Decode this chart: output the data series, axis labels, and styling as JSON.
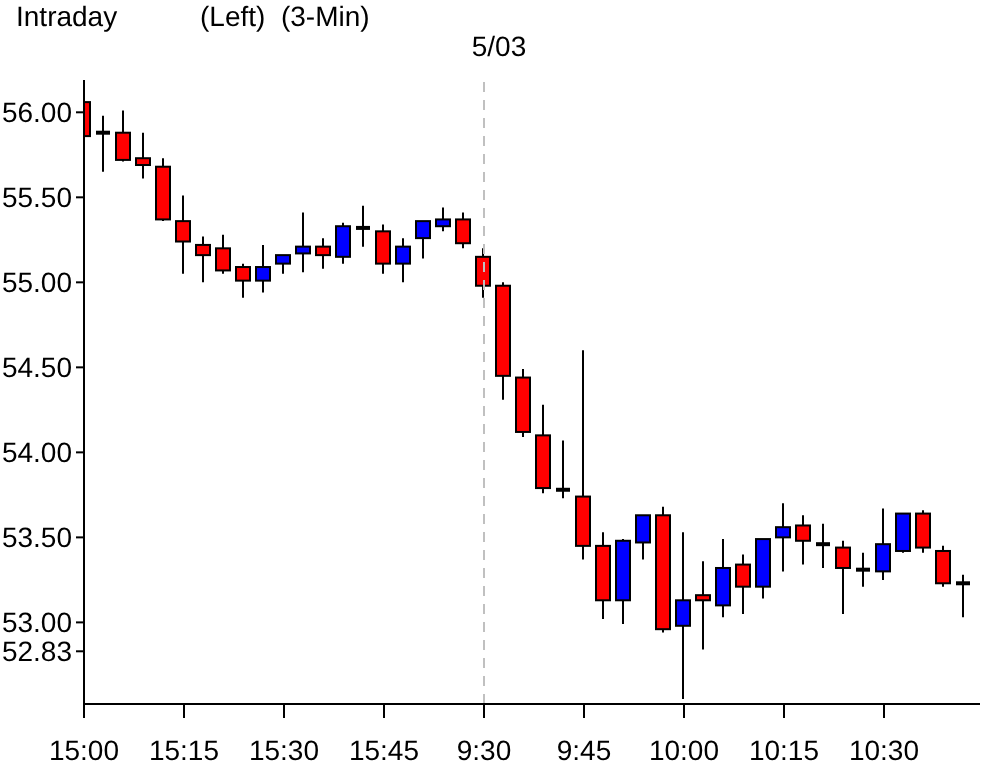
{
  "chart_data": {
    "type": "candlestick",
    "title": "(Left)  (3-Min)",
    "subtitle": "5/03",
    "annotations": [
      "Intraday"
    ],
    "categories": [
      "15:00",
      null,
      null,
      null,
      null,
      "15:15",
      null,
      null,
      null,
      null,
      "15:30",
      null,
      null,
      null,
      null,
      "15:45",
      null,
      null,
      null,
      null,
      "9:30",
      null,
      null,
      null,
      null,
      "9:45",
      null,
      null,
      null,
      null,
      "10:00",
      null,
      null,
      null,
      null,
      "10:15",
      null,
      null,
      null,
      null,
      "10:30",
      null,
      null,
      null,
      null
    ],
    "ohlc": [
      [
        56.06,
        56.12,
        55.75,
        55.86
      ],
      [
        55.88,
        55.98,
        55.65,
        55.88
      ],
      [
        55.88,
        56.01,
        55.71,
        55.72
      ],
      [
        55.73,
        55.88,
        55.61,
        55.69
      ],
      [
        55.68,
        55.73,
        55.36,
        55.37
      ],
      [
        55.36,
        55.51,
        55.05,
        55.24
      ],
      [
        55.22,
        55.27,
        55.0,
        55.16
      ],
      [
        55.2,
        55.28,
        55.05,
        55.07
      ],
      [
        55.09,
        55.11,
        54.91,
        55.01
      ],
      [
        55.01,
        55.22,
        54.94,
        55.09
      ],
      [
        55.11,
        55.16,
        55.05,
        55.16
      ],
      [
        55.17,
        55.41,
        55.06,
        55.21
      ],
      [
        55.21,
        55.26,
        55.08,
        55.16
      ],
      [
        55.15,
        55.35,
        55.11,
        55.33
      ],
      [
        55.32,
        55.45,
        55.21,
        55.32
      ],
      [
        55.3,
        55.34,
        55.05,
        55.11
      ],
      [
        55.11,
        55.26,
        55.0,
        55.21
      ],
      [
        55.26,
        55.36,
        55.14,
        55.36
      ],
      [
        55.33,
        55.44,
        55.3,
        55.37
      ],
      [
        55.37,
        55.41,
        55.2,
        55.23
      ],
      [
        55.15,
        55.2,
        54.91,
        54.98
      ],
      [
        54.98,
        55.0,
        54.31,
        54.45
      ],
      [
        54.44,
        54.49,
        54.09,
        54.12
      ],
      [
        54.1,
        54.28,
        53.76,
        53.79
      ],
      [
        53.78,
        54.07,
        53.73,
        53.78
      ],
      [
        53.74,
        54.6,
        53.37,
        53.45
      ],
      [
        53.45,
        53.53,
        53.02,
        53.13
      ],
      [
        53.13,
        53.49,
        52.99,
        53.48
      ],
      [
        53.47,
        53.63,
        53.37,
        53.63
      ],
      [
        53.63,
        53.68,
        52.94,
        52.96
      ],
      [
        52.98,
        53.53,
        52.55,
        53.13
      ],
      [
        53.16,
        53.36,
        52.84,
        53.13
      ],
      [
        53.1,
        53.49,
        53.03,
        53.32
      ],
      [
        53.34,
        53.4,
        53.05,
        53.21
      ],
      [
        53.21,
        53.49,
        53.14,
        53.49
      ],
      [
        53.5,
        53.7,
        53.3,
        53.56
      ],
      [
        53.57,
        53.63,
        53.34,
        53.48
      ],
      [
        53.46,
        53.58,
        53.32,
        53.46
      ],
      [
        53.44,
        53.48,
        53.05,
        53.32
      ],
      [
        53.31,
        53.41,
        53.21,
        53.31
      ],
      [
        53.3,
        53.67,
        53.25,
        53.46
      ],
      [
        53.42,
        53.64,
        53.41,
        53.64
      ],
      [
        53.64,
        53.66,
        53.41,
        53.44
      ],
      [
        53.42,
        53.45,
        53.21,
        53.23
      ],
      [
        53.23,
        53.28,
        53.03,
        53.23
      ]
    ],
    "colors": [
      "#ff0000",
      "#000000",
      "#ff0000",
      "#ff0000",
      "#ff0000",
      "#ff0000",
      "#ff0000",
      "#ff0000",
      "#ff0000",
      "#0000ff",
      "#0000ff",
      "#0000ff",
      "#ff0000",
      "#0000ff",
      "#000000",
      "#ff0000",
      "#0000ff",
      "#0000ff",
      "#0000ff",
      "#ff0000",
      "#ff0000",
      "#ff0000",
      "#ff0000",
      "#ff0000",
      "#000000",
      "#ff0000",
      "#ff0000",
      "#0000ff",
      "#0000ff",
      "#ff0000",
      "#0000ff",
      "#ff0000",
      "#0000ff",
      "#ff0000",
      "#0000ff",
      "#0000ff",
      "#ff0000",
      "#000000",
      "#ff0000",
      "#000000",
      "#0000ff",
      "#0000ff",
      "#ff0000",
      "#ff0000",
      "#000000"
    ],
    "ylim": [
      52.52,
      56.19
    ],
    "yticks": [
      52.83,
      {
        "value": 53,
        "label": "53.00"
      },
      {
        "value": 53.5,
        "label": "53.50"
      },
      {
        "value": 54,
        "label": "54.00"
      },
      {
        "value": 54.5,
        "label": "54.50"
      },
      {
        "value": 55,
        "label": "55.00"
      },
      {
        "value": 55.5,
        "label": "55.50"
      },
      {
        "value": 56,
        "label": "56.00"
      }
    ],
    "ref_lines": [
      {
        "axis": "x",
        "value": "9:30",
        "color": "#c0c0c0",
        "line_style": "dashed"
      }
    ]
  }
}
